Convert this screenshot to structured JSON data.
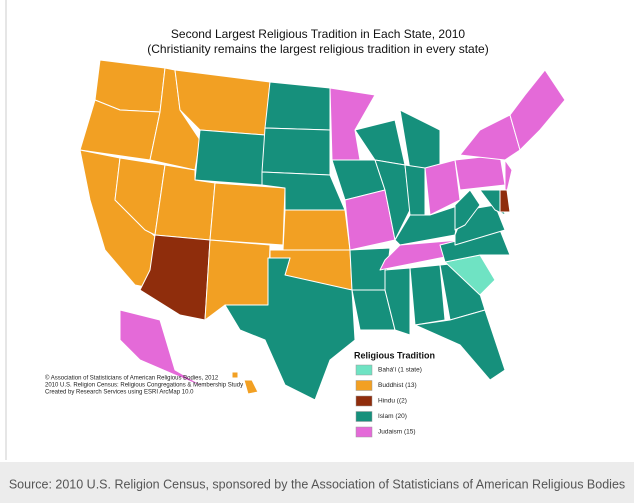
{
  "title": "Second Largest Religious Tradition in Each State, 2010",
  "subtitle": "(Christianity remains the largest religious tradition in every state)",
  "legend": {
    "title": "Religious Tradition",
    "items": [
      {
        "label": "Bahá'í (1 state)",
        "color": "#6fe3c3"
      },
      {
        "label": "Buddhist (13)",
        "color": "#f2a023"
      },
      {
        "label": "Hindu ((2)",
        "color": "#8f2d0c"
      },
      {
        "label": "Islam (20)",
        "color": "#16907c"
      },
      {
        "label": "Judaism (15)",
        "color": "#e46ad8"
      }
    ]
  },
  "credits": [
    "© Association of Statisticians of American Religious Bodies, 2012",
    "2010 U.S. Religion Census: Religious Congregations & Membership Study",
    "Created by Research Services using ESRI ArcMap 10.0"
  ],
  "source": "Source: 2010 U.S. Religion Census, sponsored by the Association of Statisticians of American Religious Bodies"
}
